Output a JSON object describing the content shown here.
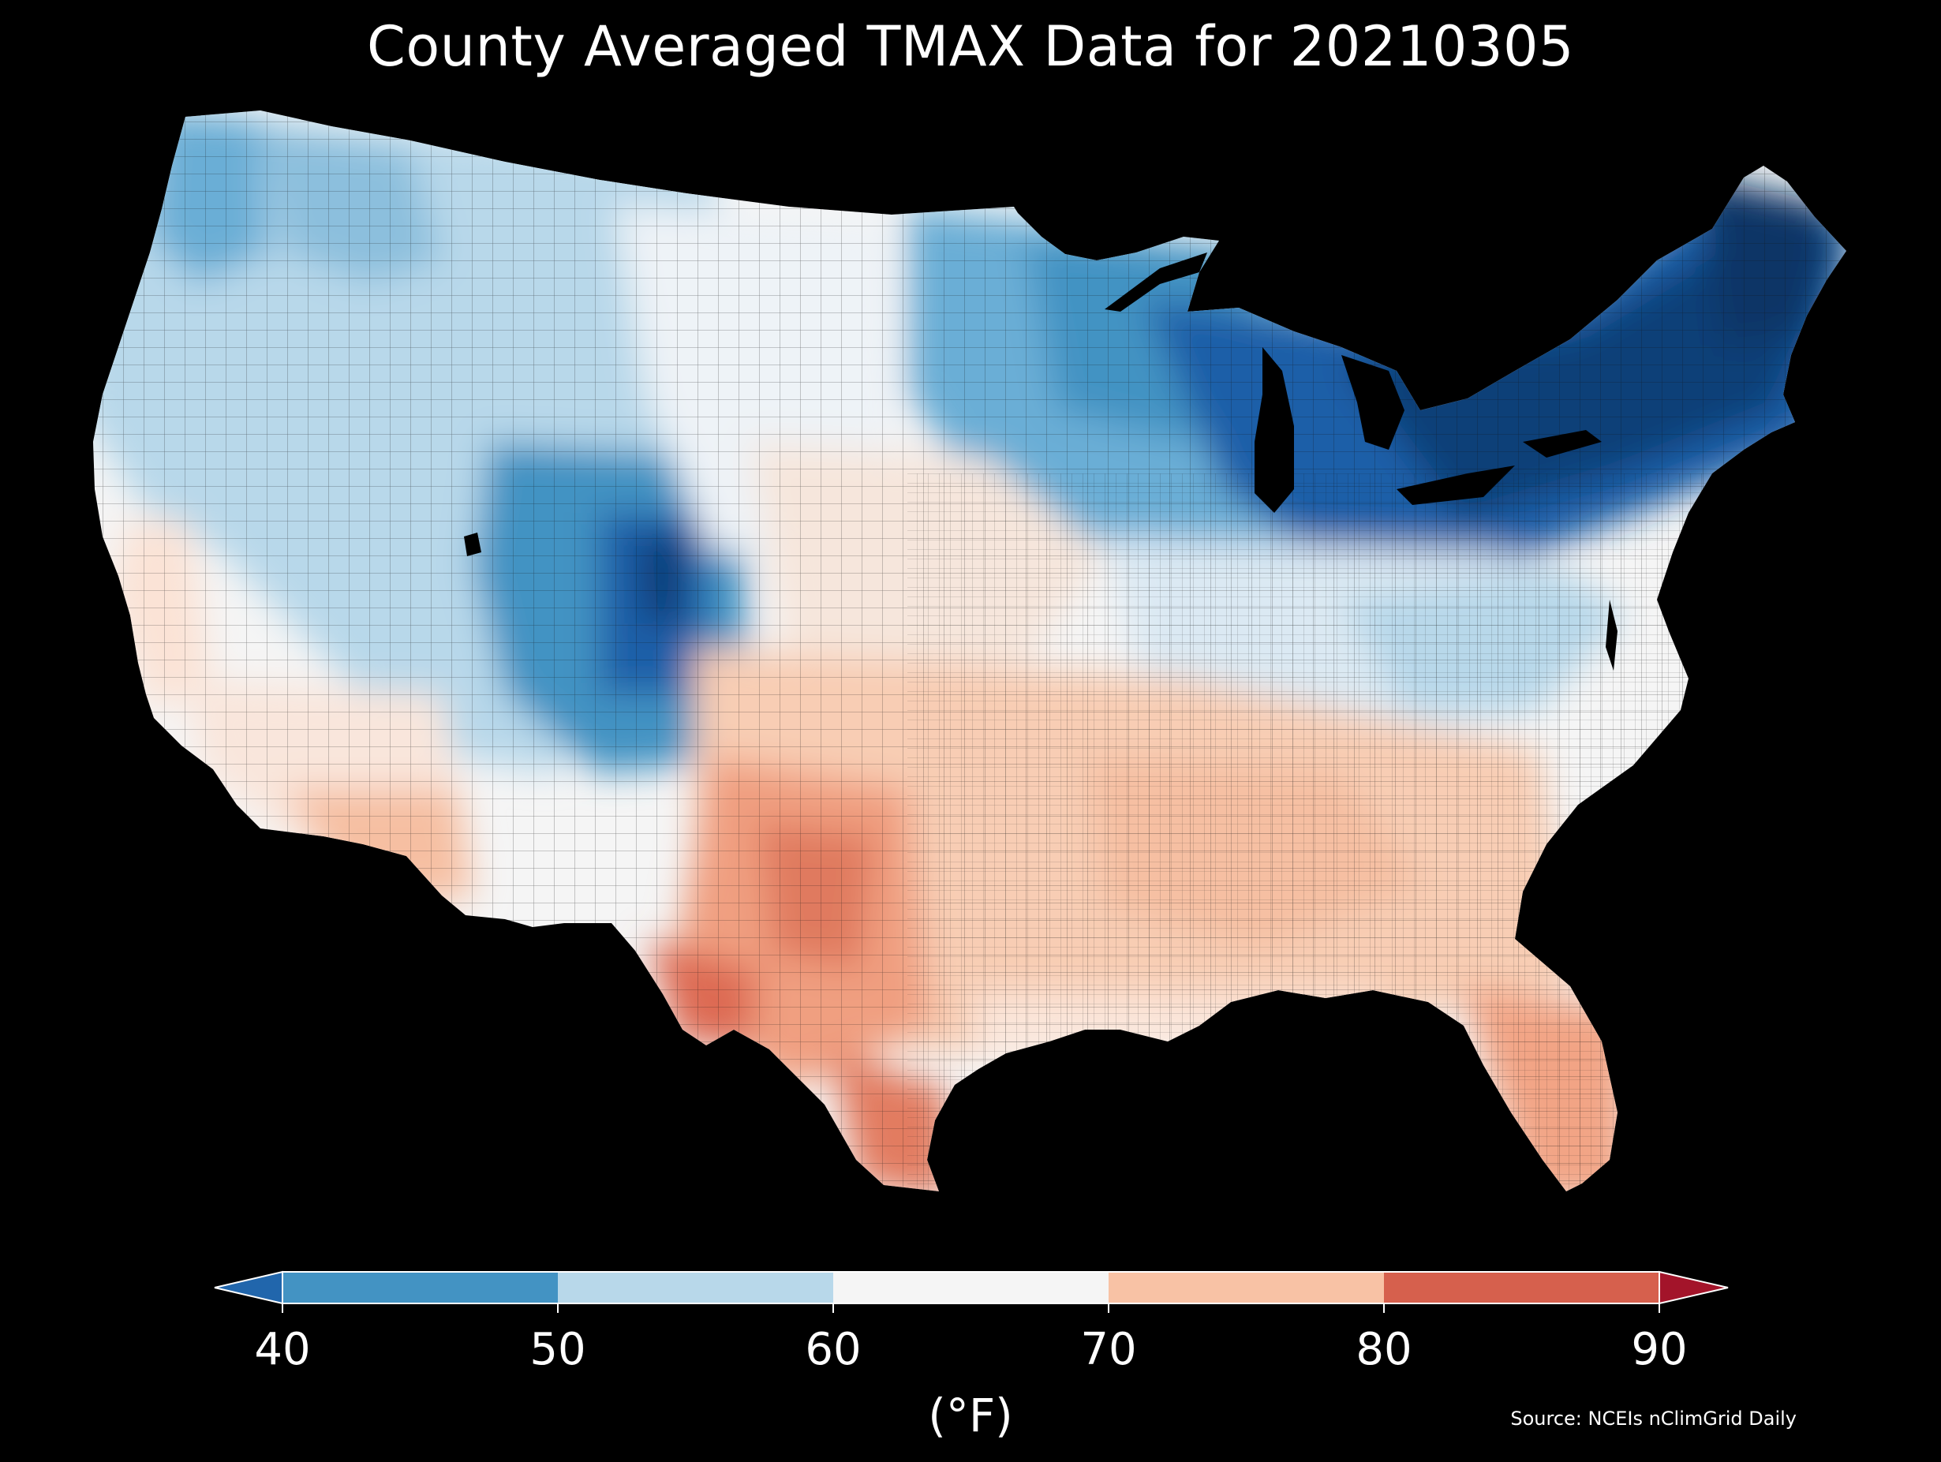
{
  "title": "County Averaged TMAX Data for 20210305",
  "colorbar": {
    "ticks": [
      "40",
      "50",
      "60",
      "70",
      "80",
      "90"
    ],
    "unit": "(°F)",
    "bins": [
      {
        "range": [
          null,
          40
        ],
        "color": "#2166ac"
      },
      {
        "range": [
          40,
          50
        ],
        "color": "#4393c3"
      },
      {
        "range": [
          50,
          60
        ],
        "color": "#b8d8ea"
      },
      {
        "range": [
          60,
          70
        ],
        "color": "#f5f5f5"
      },
      {
        "range": [
          70,
          80
        ],
        "color": "#f8c2a5"
      },
      {
        "range": [
          80,
          90
        ],
        "color": "#d6604d"
      },
      {
        "range": [
          90,
          null
        ],
        "color": "#a3142a"
      }
    ]
  },
  "source": "Source: NCEIs nClimGrid Daily",
  "regions": {
    "northeast_and_great_lakes": "< 40",
    "upper_midwest": "40-50",
    "colorado_rockies": "< 40",
    "northwest_and_great_basin": "50-60",
    "central_plains_and_ohio_valley": "60-70",
    "southern_plains_and_southeast": "70-80",
    "west_texas_and_rio_grande": "80-90"
  }
}
